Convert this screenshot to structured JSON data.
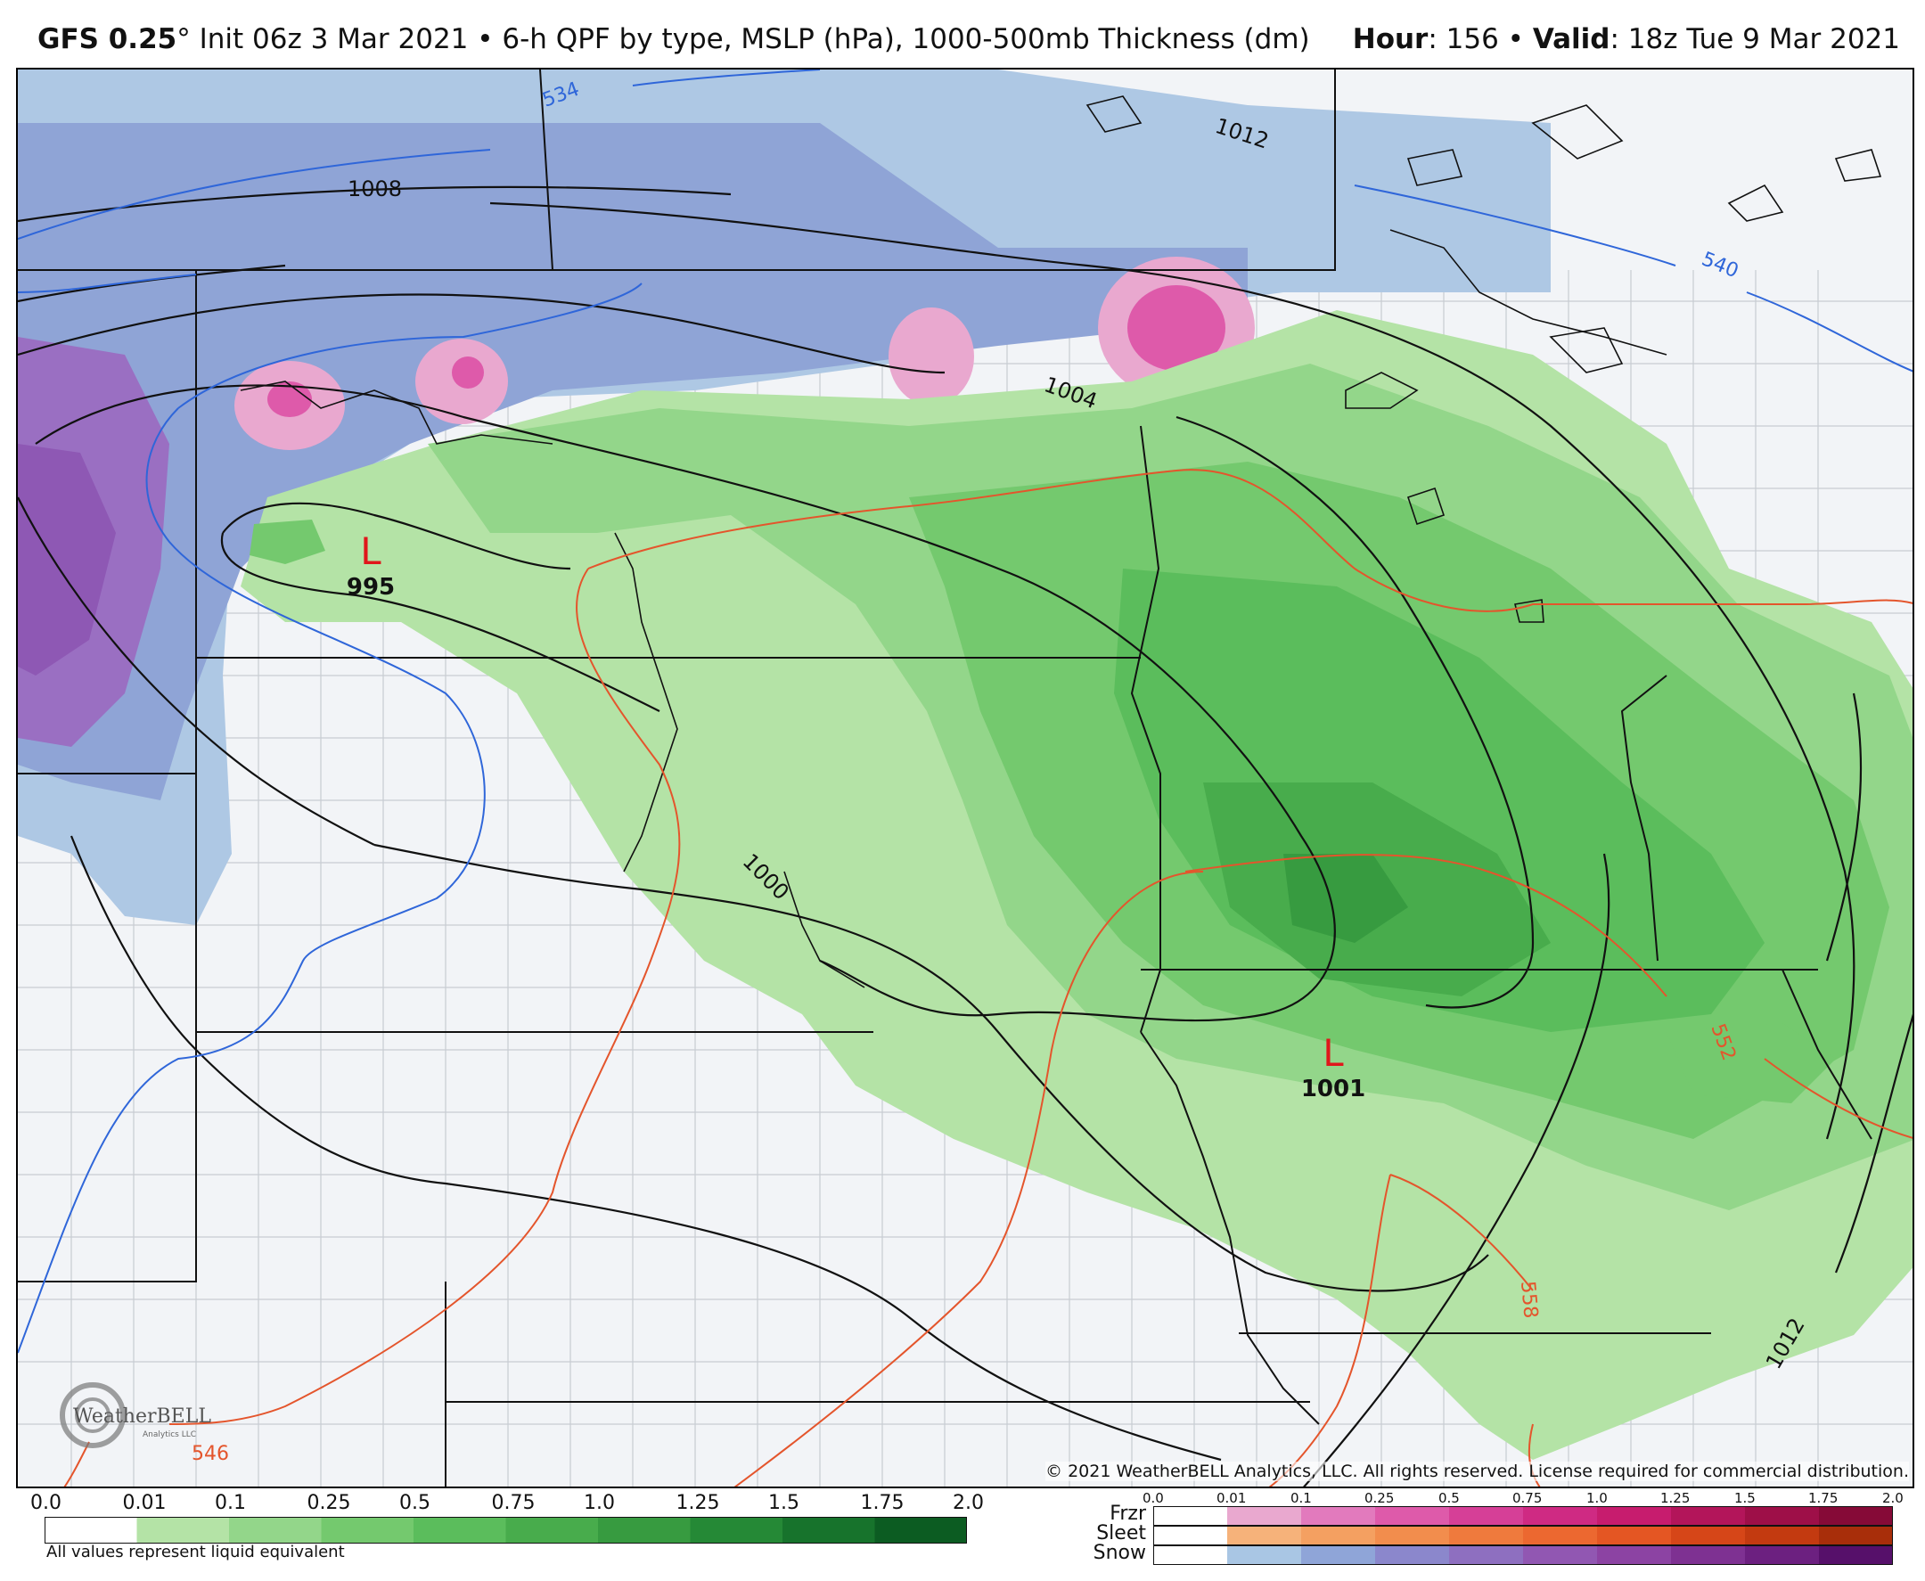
{
  "header": {
    "model": "GFS 0.25",
    "degree": "°",
    "init": " Init 06z 3 Mar 2021",
    "bullet": " • ",
    "fields": "6-h QPF by type, MSLP (hPa), 1000-500mb Thickness (dm)",
    "hour_label": "Hour",
    "hour_value": ": 156 • ",
    "valid_label": "Valid",
    "valid_value": ": 18z Tue 9 Mar 2021"
  },
  "map": {
    "isobar_labels": [
      "1008",
      "1012",
      "1004",
      "1000",
      "1012"
    ],
    "thickness_labels": [
      "534",
      "540",
      "552",
      "558",
      "546"
    ],
    "lows": [
      {
        "symbol": "L",
        "pressure": "995"
      },
      {
        "symbol": "L",
        "pressure": "1001"
      }
    ],
    "logo_text": "WeatherBELL",
    "logo_sub": "Analytics LLC",
    "copyright": "© 2021 WeatherBELL Analytics, LLC. All rights reserved. License required for commercial distribution."
  },
  "rain_legend": {
    "ticks": [
      "0.0",
      "0.01",
      "0.1",
      "0.25",
      "0.5",
      "0.75",
      "1.0",
      "1.25",
      "1.5",
      "1.75",
      "2.0"
    ],
    "colors": [
      "#ffffff",
      "#b4e3a6",
      "#93d68a",
      "#74c96e",
      "#5bbd5c",
      "#48ac4c",
      "#379b40",
      "#258936",
      "#17732c",
      "#0c5c22",
      "#063f17"
    ],
    "note": "All values represent liquid equivalent"
  },
  "type_legend": {
    "ticks": [
      "0.0",
      "0.01",
      "0.1",
      "0.25",
      "0.5",
      "0.75",
      "1.0",
      "1.25",
      "1.5",
      "1.75",
      "2.0"
    ],
    "rows": [
      {
        "label": "Frzr",
        "colors": [
          "#ffffff",
          "#e9a8cf",
          "#e27abd",
          "#de5aaa",
          "#d63f97",
          "#cf2a83",
          "#c71c6e",
          "#b3155a",
          "#9e0f48",
          "#860a37"
        ]
      },
      {
        "label": "Sleet",
        "colors": [
          "#ffffff",
          "#f6b27a",
          "#f4a061",
          "#f28d4d",
          "#ef7a3d",
          "#ec6830",
          "#e45623",
          "#d64618",
          "#c33a10",
          "#a82e0a"
        ]
      },
      {
        "label": "Snow",
        "colors": [
          "#ffffff",
          "#a9c6e4",
          "#8fa5d8",
          "#8b87cc",
          "#8e6fc0",
          "#9157b2",
          "#8c43a3",
          "#7e3192",
          "#6c2080",
          "#56106a"
        ]
      }
    ]
  },
  "colors": {
    "isobar": "#111111",
    "thickness_cold": "#2f66d9",
    "thickness_warm": "#e4552c",
    "low_symbol": "#e0171b"
  }
}
